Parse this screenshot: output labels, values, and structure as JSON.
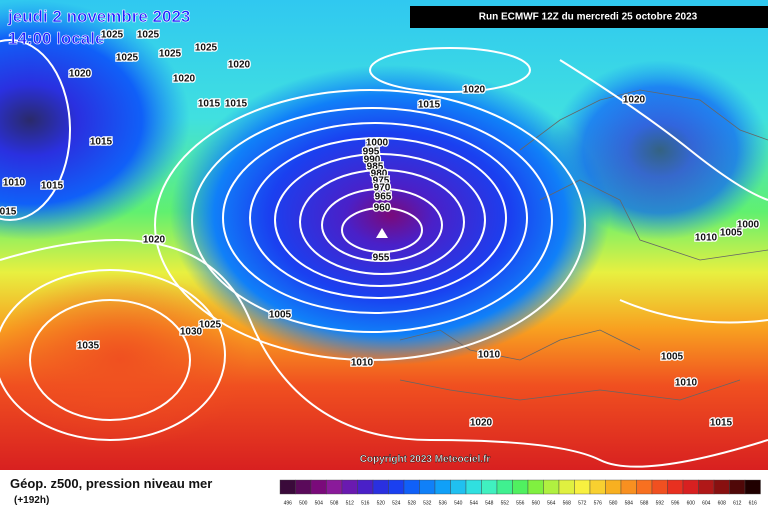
{
  "header": {
    "date": "jeudi 2 novembre 2023",
    "time": "14:00 locale",
    "run": "Run ECMWF 12Z du mercredi 25 octobre 2023"
  },
  "isobar_labels": [
    "1025",
    "1025",
    "1025",
    "1025",
    "1025",
    "1020",
    "1020",
    "1020",
    "1020",
    "1020",
    "1015",
    "1015",
    "1015",
    "1015",
    "1010",
    "1015",
    "015",
    "1020",
    "1000",
    "995",
    "990",
    "985",
    "980",
    "975",
    "970",
    "965",
    "960",
    "955",
    "1000",
    "1010",
    "1005",
    "1025",
    "1030",
    "1005",
    "1035",
    "1010",
    "1010",
    "1005",
    "1010",
    "1020",
    "1015"
  ],
  "copyright": "Copyright 2023 Meteociel.fr",
  "legend": {
    "title": "Géop. z500, pression niveau mer",
    "subtitle": "(+192h)",
    "levels": [
      496,
      500,
      504,
      508,
      512,
      516,
      520,
      524,
      528,
      532,
      536,
      540,
      544,
      548,
      552,
      556,
      560,
      564,
      568,
      572,
      576,
      580,
      584,
      588,
      592,
      596,
      600,
      604,
      608,
      612,
      616
    ],
    "colors": [
      "#3a0a3a",
      "#5a0a5a",
      "#7a0a7a",
      "#8a1a9a",
      "#6a1ab0",
      "#4a20c8",
      "#2a30e0",
      "#1a40f0",
      "#1060f8",
      "#1080f8",
      "#10a0f8",
      "#20c0f0",
      "#30e0e0",
      "#40f0c0",
      "#40f090",
      "#50f060",
      "#80f040",
      "#b0f040",
      "#e0f040",
      "#f8f040",
      "#f8d030",
      "#f8b020",
      "#f89020",
      "#f87020",
      "#f05020",
      "#e83020",
      "#d82020",
      "#b01818",
      "#881010",
      "#500808",
      "#200000"
    ]
  }
}
